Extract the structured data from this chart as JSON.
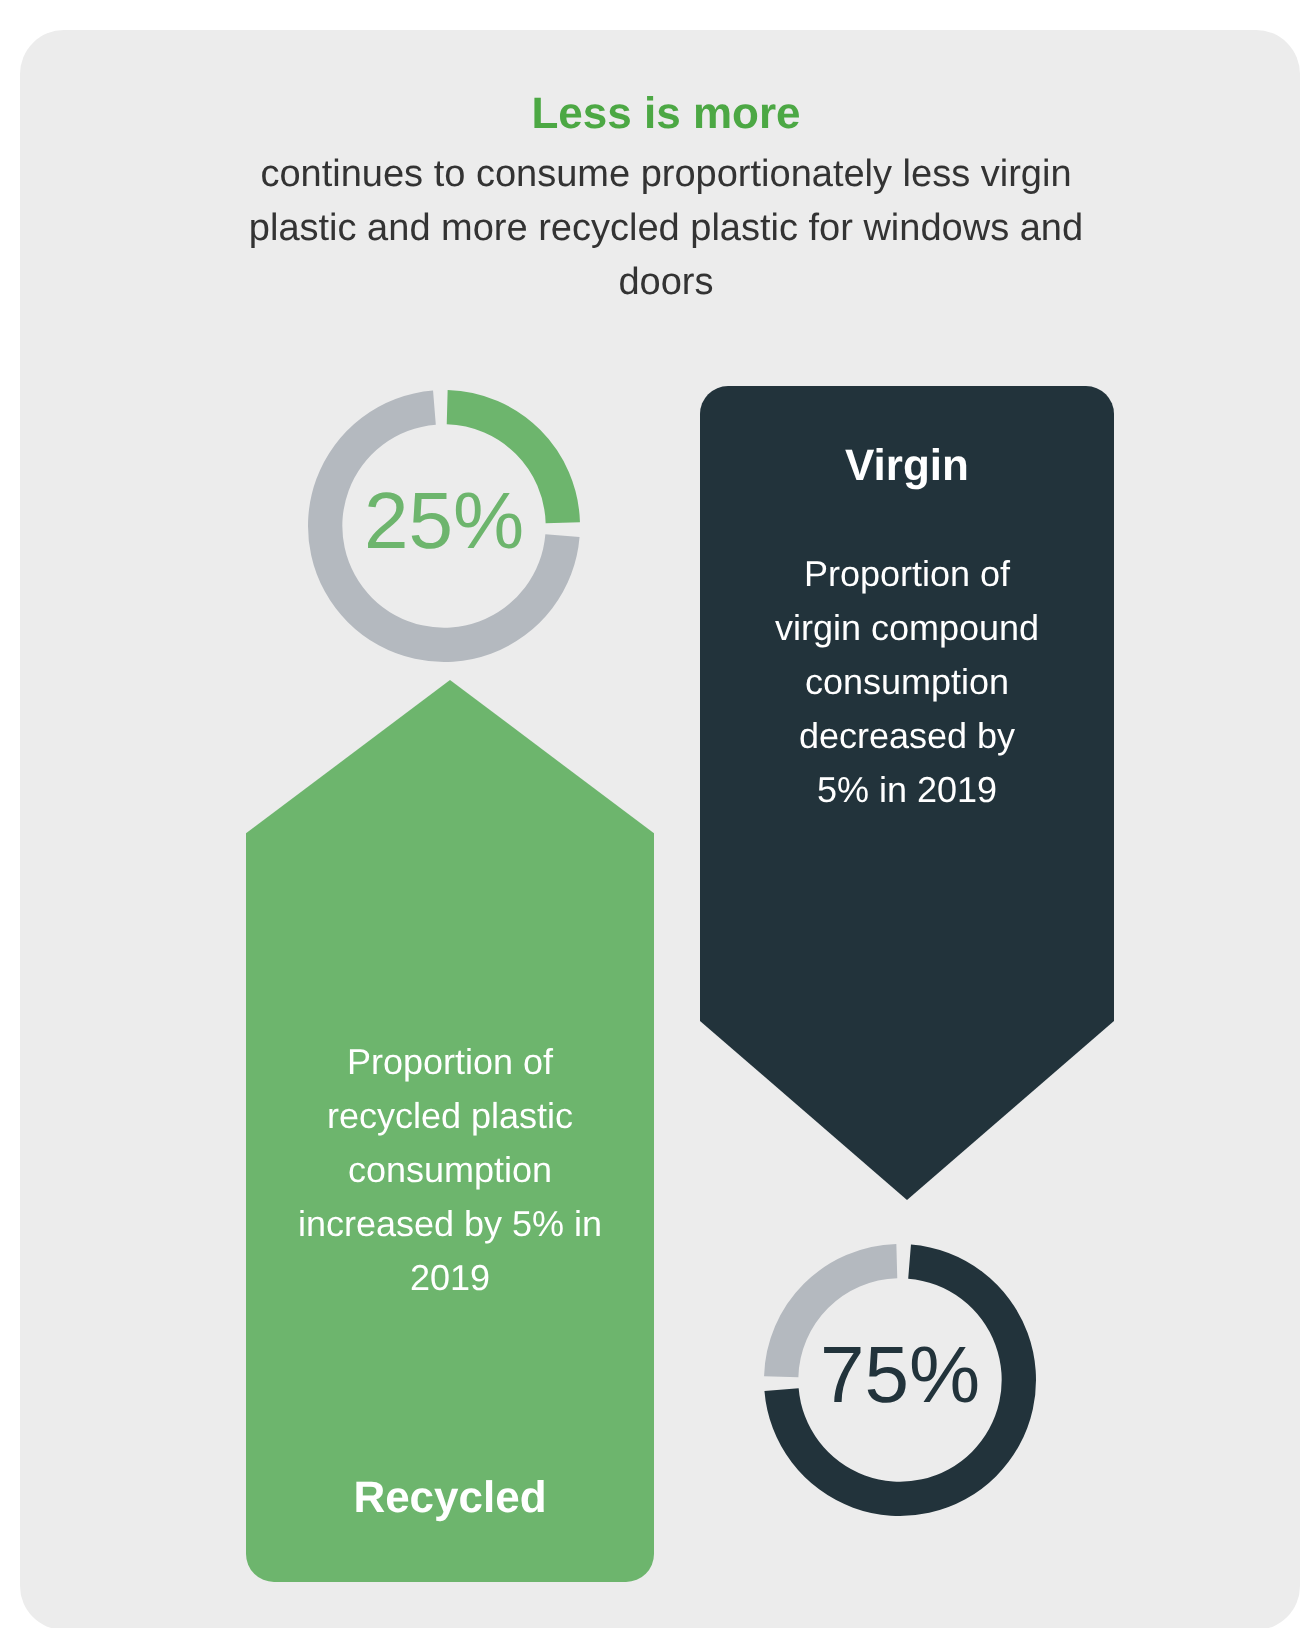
{
  "chart_data": [
    {
      "type": "donut",
      "title": "Less is more",
      "subtitle": "continues to consume proportionately less virgin plastic and more recycled plastic for windows and doors",
      "categories": [
        null,
        null
      ],
      "values": [
        25,
        75
      ],
      "colors": [
        "#6db56d",
        "#b4b9bf"
      ],
      "value_labels": [
        "25%",
        null
      ],
      "annotations": [
        "Recycled",
        "Proportion of recycled plastic consumption increased by 5% in 2019"
      ]
    },
    {
      "type": "donut",
      "categories": [
        null,
        null
      ],
      "values": [
        75,
        25
      ],
      "colors": [
        "#22333b",
        "#b4b9bf"
      ],
      "value_labels": [
        "75%",
        null
      ],
      "annotations": [
        "Virgin",
        "Proportion of virgin compound consumption decreased by 5% in 2019"
      ]
    }
  ]
}
